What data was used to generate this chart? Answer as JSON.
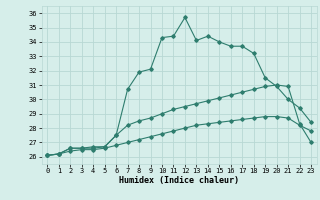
{
  "title": "",
  "xlabel": "Humidex (Indice chaleur)",
  "ylabel": "",
  "background_color": "#d6eeea",
  "grid_color": "#b8d8d4",
  "line_color": "#2e7d6e",
  "xlim": [
    -0.5,
    23.5
  ],
  "ylim": [
    25.5,
    36.5
  ],
  "xticks": [
    0,
    1,
    2,
    3,
    4,
    5,
    6,
    7,
    8,
    9,
    10,
    11,
    12,
    13,
    14,
    15,
    16,
    17,
    18,
    19,
    20,
    21,
    22,
    23
  ],
  "yticks": [
    26,
    27,
    28,
    29,
    30,
    31,
    32,
    33,
    34,
    35,
    36
  ],
  "series": [
    [
      26.1,
      26.2,
      26.6,
      26.6,
      26.6,
      26.7,
      27.5,
      30.7,
      31.9,
      32.1,
      34.3,
      34.4,
      35.7,
      34.1,
      34.4,
      34.0,
      33.7,
      33.7,
      33.2,
      31.5,
      30.9,
      30.0,
      29.4,
      28.4
    ],
    [
      26.1,
      26.2,
      26.6,
      26.6,
      26.7,
      26.7,
      27.5,
      28.2,
      28.5,
      28.7,
      29.0,
      29.3,
      29.5,
      29.7,
      29.9,
      30.1,
      30.3,
      30.5,
      30.7,
      30.9,
      31.0,
      30.9,
      28.3,
      27.0
    ],
    [
      26.1,
      26.2,
      26.4,
      26.5,
      26.5,
      26.6,
      26.8,
      27.0,
      27.2,
      27.4,
      27.6,
      27.8,
      28.0,
      28.2,
      28.3,
      28.4,
      28.5,
      28.6,
      28.7,
      28.8,
      28.8,
      28.7,
      28.2,
      27.8
    ]
  ]
}
